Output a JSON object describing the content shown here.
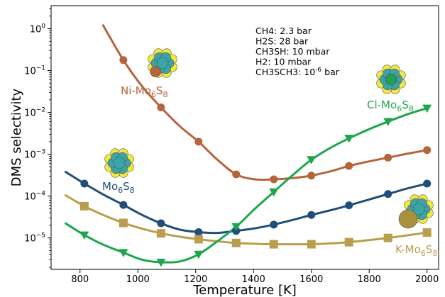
{
  "chart_data": {
    "type": "line",
    "title": "",
    "xlabel": "Temperature [K]",
    "ylabel": "DMS selectivity",
    "xlim": [
      700,
      2040
    ],
    "ylim_log10": [
      -5.75,
      0.55
    ],
    "yscale": "log",
    "grid": false,
    "x_ticks": [
      800,
      1000,
      1200,
      1400,
      1600,
      1800,
      2000
    ],
    "y_ticks": [
      {
        "exp": 0,
        "label": "10",
        "sup": "0"
      },
      {
        "exp": -1,
        "label": "10",
        "sup": "−1"
      },
      {
        "exp": -2,
        "label": "10",
        "sup": "−2"
      },
      {
        "exp": -3,
        "label": "10",
        "sup": "−3"
      },
      {
        "exp": -4,
        "label": "10",
        "sup": "−4"
      },
      {
        "exp": -5,
        "label": "10",
        "sup": "−5"
      }
    ],
    "conditions": [
      {
        "text": "CH4: 2.3 bar",
        "sup": ""
      },
      {
        "text": "H2S: 28 bar",
        "sup": ""
      },
      {
        "text": "CH3SH: 10 mbar",
        "sup": ""
      },
      {
        "text": "H2: 10 mbar",
        "sup": ""
      },
      {
        "text": "CH3SCH3: 10",
        "sup": "-6",
        "tail": "  bar"
      }
    ],
    "series": [
      {
        "name": "Ni-Mo6S8",
        "label_main": "Ni-Mo",
        "label_sub1": "6",
        "label_mid": "S",
        "label_sub2": "8",
        "color": "#b5643c",
        "marker": "circle",
        "x": [
          950,
          1080,
          1210,
          1340,
          1470,
          1600,
          1730,
          1865,
          2000
        ],
        "log10_y": [
          -0.75,
          -1.88,
          -2.7,
          -3.48,
          -3.6,
          -3.51,
          -3.28,
          -3.08,
          -2.9
        ],
        "curve_x": [
          880,
          950,
          1015,
          1080,
          1145,
          1210,
          1275,
          1340,
          1405,
          1470,
          1535,
          1600,
          1665,
          1730,
          1800,
          1865,
          1930,
          2000
        ],
        "curve_log10_y": [
          0.08,
          -0.75,
          -1.38,
          -1.88,
          -2.33,
          -2.7,
          -3.13,
          -3.48,
          -3.6,
          -3.6,
          -3.57,
          -3.51,
          -3.41,
          -3.28,
          -3.17,
          -3.08,
          -2.99,
          -2.9
        ]
      },
      {
        "name": "Mo6S8",
        "label_main": "Mo",
        "label_sub1": "6",
        "label_mid": "S",
        "label_sub2": "8",
        "color": "#1f4e79",
        "marker": "circle",
        "x": [
          815,
          950,
          1080,
          1210,
          1340,
          1470,
          1600,
          1730,
          1865,
          2000
        ],
        "log10_y": [
          -3.7,
          -4.21,
          -4.65,
          -4.86,
          -4.83,
          -4.68,
          -4.45,
          -4.22,
          -3.95,
          -3.7
        ],
        "curve_x": [
          750,
          815,
          880,
          950,
          1015,
          1080,
          1145,
          1210,
          1275,
          1340,
          1405,
          1470,
          1535,
          1600,
          1665,
          1730,
          1800,
          1865,
          1930,
          2000
        ],
        "curve_log10_y": [
          -3.42,
          -3.7,
          -3.96,
          -4.21,
          -4.45,
          -4.65,
          -4.8,
          -4.86,
          -4.88,
          -4.83,
          -4.77,
          -4.68,
          -4.57,
          -4.45,
          -4.34,
          -4.22,
          -4.08,
          -3.95,
          -3.82,
          -3.7
        ]
      },
      {
        "name": "K-Mo6S8",
        "label_main": "K-Mo",
        "label_sub1": "6",
        "label_mid": "S",
        "label_sub2": "8",
        "color": "#b99e4e",
        "marker": "square",
        "x": [
          815,
          950,
          1080,
          1210,
          1340,
          1470,
          1600,
          1730,
          1865,
          2000
        ],
        "log10_y": [
          -4.24,
          -4.64,
          -4.89,
          -5.03,
          -5.12,
          -5.15,
          -5.15,
          -5.1,
          -5.0,
          -4.87
        ],
        "curve_x": [
          750,
          815,
          880,
          950,
          1015,
          1080,
          1145,
          1210,
          1275,
          1340,
          1405,
          1470,
          1535,
          1600,
          1665,
          1730,
          1800,
          1865,
          1930,
          2000
        ],
        "curve_log10_y": [
          -3.98,
          -4.24,
          -4.45,
          -4.64,
          -4.78,
          -4.89,
          -4.97,
          -5.03,
          -5.08,
          -5.12,
          -5.14,
          -5.15,
          -5.15,
          -5.15,
          -5.13,
          -5.1,
          -5.05,
          -5.0,
          -4.94,
          -4.87
        ]
      },
      {
        "name": "Cl-Mo6S8",
        "label_main": "Cl-Mo",
        "label_sub1": "6",
        "label_mid": "S",
        "label_sub2": "8",
        "color": "#1ea64e",
        "marker": "triangle-down",
        "x": [
          815,
          950,
          1080,
          1210,
          1340,
          1470,
          1600,
          1730,
          1865,
          2000
        ],
        "log10_y": [
          -4.93,
          -5.35,
          -5.58,
          -5.39,
          -4.73,
          -3.9,
          -3.13,
          -2.62,
          -2.22,
          -1.9
        ],
        "curve_x": [
          750,
          815,
          880,
          950,
          1015,
          1080,
          1145,
          1210,
          1275,
          1340,
          1405,
          1470,
          1535,
          1600,
          1665,
          1730,
          1800,
          1865,
          1930,
          2000
        ],
        "curve_log10_y": [
          -4.65,
          -4.93,
          -5.16,
          -5.35,
          -5.52,
          -5.58,
          -5.56,
          -5.39,
          -5.08,
          -4.73,
          -4.3,
          -3.9,
          -3.5,
          -3.13,
          -2.85,
          -2.62,
          -2.4,
          -2.22,
          -2.05,
          -1.9
        ]
      }
    ]
  }
}
